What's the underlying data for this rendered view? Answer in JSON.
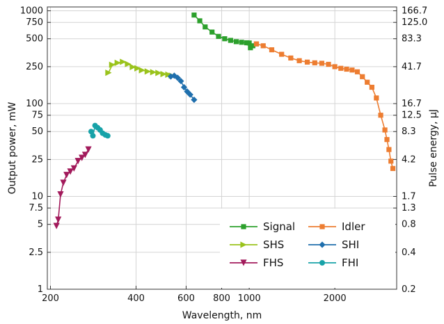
{
  "chart_data": {
    "type": "line",
    "xlabel": "Wavelength, nm",
    "ylabel": "Output power, mW",
    "y2label": "Pulse energy, µJ",
    "xscale": "log",
    "yscale": "log",
    "xlim": [
      195,
      3300
    ],
    "ylim": [
      1,
      1100
    ],
    "x_ticks": [
      200,
      400,
      600,
      800,
      1000,
      2000
    ],
    "x_tick_labels": [
      "200",
      "400",
      "600",
      "800",
      "1000",
      "2000"
    ],
    "y_ticks": [
      1,
      2.5,
      5,
      7.5,
      10,
      25,
      50,
      75,
      100,
      250,
      500,
      750,
      1000
    ],
    "y_tick_labels": [
      "1",
      "2.5",
      "5",
      "7.5",
      "10",
      "25",
      "50",
      "75",
      "100",
      "250",
      "500",
      "750",
      "1000"
    ],
    "y2_ticks": [
      1,
      2.5,
      5,
      7.5,
      10,
      25,
      50,
      75,
      100,
      250,
      500,
      750,
      1000
    ],
    "y2_tick_labels": [
      "0.2",
      "0.4",
      "0.8",
      "1.3",
      "1.7",
      "4.2",
      "8.3",
      "12.5",
      "16.7",
      "41.7",
      "83.3",
      "125.0",
      "166.7"
    ],
    "grid": true,
    "legend_position": "bottom-right",
    "series": [
      {
        "name": "Signal",
        "color": "#2ca02c",
        "marker": "square",
        "x": [
          640,
          670,
          700,
          740,
          780,
          820,
          860,
          900,
          940,
          980,
          1000,
          1010,
          1030,
          1060
        ],
        "y": [
          900,
          780,
          670,
          590,
          530,
          500,
          480,
          465,
          458,
          452,
          450,
          400,
          420,
          440
        ]
      },
      {
        "name": "Idler",
        "color": "#ed7d31",
        "marker": "square",
        "x": [
          1060,
          1120,
          1200,
          1300,
          1400,
          1500,
          1600,
          1700,
          1800,
          1900,
          2000,
          2100,
          2200,
          2300,
          2400,
          2500,
          2600,
          2700,
          2800,
          2900,
          3000,
          3050,
          3100,
          3150,
          3200
        ],
        "y": [
          440,
          420,
          380,
          340,
          310,
          290,
          280,
          275,
          272,
          265,
          250,
          240,
          235,
          230,
          220,
          195,
          170,
          150,
          115,
          75,
          52,
          41,
          32,
          24,
          20
        ]
      },
      {
        "name": "SHS",
        "color": "#9ac31c",
        "marker": "triangle-right",
        "x": [
          320,
          330,
          345,
          360,
          375,
          390,
          405,
          420,
          440,
          460,
          480,
          500,
          520,
          535
        ],
        "y": [
          215,
          262,
          275,
          282,
          267,
          248,
          240,
          229,
          222,
          218,
          214,
          208,
          205,
          200
        ]
      },
      {
        "name": "SHI",
        "color": "#1f6fad",
        "marker": "diamond",
        "x": [
          530,
          545,
          560,
          575,
          590,
          605,
          620,
          640
        ],
        "y": [
          196,
          200,
          190,
          175,
          150,
          135,
          125,
          110
        ]
      },
      {
        "name": "FHS",
        "color": "#a21a5b",
        "marker": "triangle-down",
        "x": [
          210,
          213,
          217,
          222,
          228,
          235,
          242,
          250,
          258,
          265,
          272
        ],
        "y": [
          4.8,
          5.6,
          10.5,
          14,
          17,
          18.5,
          20,
          24,
          26,
          28,
          32
        ]
      },
      {
        "name": "FHI",
        "color": "#17a2a8",
        "marker": "circle",
        "x": [
          278,
          282,
          287,
          293,
          299,
          305,
          312,
          318
        ],
        "y": [
          50,
          45,
          58,
          55,
          52,
          48,
          46,
          45
        ]
      }
    ]
  }
}
